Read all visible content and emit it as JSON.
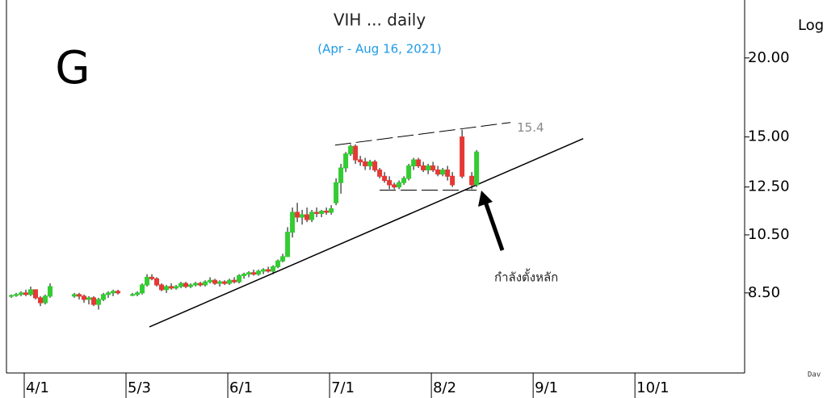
{
  "chart_data": {
    "type": "candlestick",
    "title": "VIH ... daily",
    "subtitle": "(Apr - Aug 16, 2021)",
    "pattern_label": "G",
    "scale_label": "Log",
    "log_scale": true,
    "up_color": "#33cc33",
    "down_color": "#e53935",
    "xlim": [
      -4,
      148.3
    ],
    "xticks": [
      {
        "value": 0,
        "label": "4/1"
      },
      {
        "value": 21,
        "label": "5/3"
      },
      {
        "value": 42,
        "label": "6/1"
      },
      {
        "value": 63,
        "label": "7/1"
      },
      {
        "value": 84,
        "label": "8/2"
      },
      {
        "value": 105,
        "label": "9/1"
      },
      {
        "value": 126,
        "label": "10/1"
      }
    ],
    "ylim": [
      6.35,
      24.7
    ],
    "yticks": [
      {
        "value": 20,
        "label": "20.00"
      },
      {
        "value": 15,
        "label": "15.00"
      },
      {
        "value": 12.5,
        "label": "12.50"
      },
      {
        "value": 10.5,
        "label": "10.50"
      },
      {
        "value": 8.5,
        "label": "8.50"
      }
    ],
    "x": [
      -3,
      -2,
      -1,
      0,
      1,
      2,
      3,
      4,
      5,
      10,
      11,
      12,
      13,
      14,
      15,
      16,
      17,
      18,
      19,
      22,
      23,
      24,
      25,
      26,
      27,
      28,
      29,
      30,
      31,
      32,
      33,
      34,
      35,
      36,
      37,
      38,
      39,
      40,
      41,
      42,
      43,
      44,
      45,
      46,
      47,
      48,
      49,
      50,
      51,
      52,
      53,
      54,
      55,
      56,
      57,
      58,
      59,
      60,
      61,
      62,
      63,
      64,
      65,
      66,
      67,
      68,
      69,
      70,
      71,
      72,
      73,
      74,
      75,
      76,
      77,
      78,
      79,
      80,
      81,
      82,
      83,
      84,
      85,
      86,
      87,
      88,
      90,
      92,
      93
    ],
    "ohlc": [
      [
        8.4,
        8.45,
        8.35,
        8.42
      ],
      [
        8.42,
        8.5,
        8.38,
        8.45
      ],
      [
        8.45,
        8.55,
        8.4,
        8.5
      ],
      [
        8.5,
        8.6,
        8.4,
        8.45
      ],
      [
        8.45,
        8.7,
        8.4,
        8.6
      ],
      [
        8.6,
        8.6,
        8.3,
        8.35
      ],
      [
        8.35,
        8.4,
        8.1,
        8.2
      ],
      [
        8.2,
        8.45,
        8.15,
        8.4
      ],
      [
        8.4,
        8.8,
        8.35,
        8.7
      ],
      [
        8.4,
        8.5,
        8.35,
        8.45
      ],
      [
        8.45,
        8.5,
        8.3,
        8.4
      ],
      [
        8.4,
        8.45,
        8.2,
        8.3
      ],
      [
        8.3,
        8.4,
        8.15,
        8.35
      ],
      [
        8.35,
        8.4,
        8.1,
        8.15
      ],
      [
        8.15,
        8.35,
        8.0,
        8.3
      ],
      [
        8.3,
        8.5,
        8.25,
        8.45
      ],
      [
        8.45,
        8.55,
        8.35,
        8.5
      ],
      [
        8.5,
        8.6,
        8.4,
        8.55
      ],
      [
        8.55,
        8.6,
        8.45,
        8.5
      ],
      [
        8.45,
        8.5,
        8.4,
        8.45
      ],
      [
        8.45,
        8.55,
        8.4,
        8.5
      ],
      [
        8.5,
        8.8,
        8.45,
        8.75
      ],
      [
        8.75,
        9.1,
        8.7,
        9.0
      ],
      [
        9.0,
        9.1,
        8.9,
        8.95
      ],
      [
        8.95,
        9.0,
        8.7,
        8.75
      ],
      [
        8.75,
        8.8,
        8.55,
        8.6
      ],
      [
        8.6,
        8.75,
        8.5,
        8.7
      ],
      [
        8.7,
        8.8,
        8.6,
        8.65
      ],
      [
        8.65,
        8.75,
        8.6,
        8.7
      ],
      [
        8.7,
        8.85,
        8.65,
        8.8
      ],
      [
        8.8,
        8.85,
        8.65,
        8.7
      ],
      [
        8.7,
        8.8,
        8.65,
        8.75
      ],
      [
        8.75,
        8.85,
        8.7,
        8.8
      ],
      [
        8.8,
        8.85,
        8.7,
        8.75
      ],
      [
        8.75,
        8.9,
        8.7,
        8.85
      ],
      [
        8.85,
        9.0,
        8.8,
        8.9
      ],
      [
        8.9,
        8.95,
        8.75,
        8.8
      ],
      [
        8.8,
        8.9,
        8.7,
        8.85
      ],
      [
        8.85,
        8.9,
        8.75,
        8.8
      ],
      [
        8.8,
        8.95,
        8.75,
        8.9
      ],
      [
        8.9,
        9.0,
        8.8,
        8.85
      ],
      [
        8.85,
        9.1,
        8.8,
        9.05
      ],
      [
        9.05,
        9.15,
        8.95,
        9.1
      ],
      [
        9.1,
        9.2,
        9.0,
        9.15
      ],
      [
        9.15,
        9.25,
        9.05,
        9.1
      ],
      [
        9.1,
        9.25,
        9.05,
        9.2
      ],
      [
        9.2,
        9.3,
        9.1,
        9.25
      ],
      [
        9.25,
        9.35,
        9.15,
        9.2
      ],
      [
        9.2,
        9.4,
        9.1,
        9.35
      ],
      [
        9.35,
        9.6,
        9.3,
        9.55
      ],
      [
        9.55,
        9.8,
        9.5,
        9.7
      ],
      [
        9.7,
        10.8,
        9.7,
        10.6
      ],
      [
        10.6,
        11.6,
        10.4,
        11.4
      ],
      [
        11.4,
        11.8,
        11.0,
        11.2
      ],
      [
        11.2,
        11.5,
        10.9,
        11.3
      ],
      [
        11.3,
        11.6,
        11.0,
        11.1
      ],
      [
        11.1,
        11.5,
        11.0,
        11.4
      ],
      [
        11.4,
        11.6,
        11.2,
        11.35
      ],
      [
        11.35,
        11.5,
        11.2,
        11.45
      ],
      [
        11.45,
        11.6,
        11.3,
        11.4
      ],
      [
        11.4,
        11.7,
        11.3,
        11.55
      ],
      [
        11.8,
        12.9,
        11.7,
        12.7
      ],
      [
        12.7,
        13.6,
        12.2,
        13.4
      ],
      [
        13.4,
        14.2,
        13.2,
        14.1
      ],
      [
        14.1,
        14.6,
        14.0,
        14.5
      ],
      [
        14.5,
        14.6,
        13.6,
        13.8
      ],
      [
        13.8,
        14.0,
        13.5,
        13.7
      ],
      [
        13.7,
        13.9,
        13.3,
        13.5
      ],
      [
        13.5,
        13.8,
        13.3,
        13.7
      ],
      [
        13.7,
        13.8,
        13.2,
        13.3
      ],
      [
        13.3,
        13.4,
        12.9,
        13.0
      ],
      [
        13.0,
        13.2,
        12.7,
        12.8
      ],
      [
        12.8,
        13.0,
        12.4,
        12.6
      ],
      [
        12.6,
        12.7,
        12.4,
        12.5
      ],
      [
        12.5,
        12.8,
        12.4,
        12.7
      ],
      [
        12.7,
        13.0,
        12.6,
        12.9
      ],
      [
        12.9,
        13.6,
        12.8,
        13.5
      ],
      [
        13.5,
        13.9,
        13.3,
        13.8
      ],
      [
        13.8,
        13.9,
        13.4,
        13.5
      ],
      [
        13.5,
        13.7,
        13.2,
        13.3
      ],
      [
        13.3,
        13.6,
        13.1,
        13.5
      ],
      [
        13.5,
        13.7,
        13.2,
        13.3
      ],
      [
        13.3,
        13.5,
        13.0,
        13.1
      ],
      [
        13.1,
        13.4,
        13.0,
        13.3
      ],
      [
        13.3,
        13.5,
        12.8,
        13.0
      ],
      [
        13.0,
        13.2,
        12.5,
        12.6
      ],
      [
        15.0,
        15.4,
        12.9,
        13.0
      ],
      [
        13.0,
        13.2,
        12.4,
        12.6
      ],
      [
        12.6,
        14.3,
        12.5,
        14.2
      ]
    ],
    "lines": [
      {
        "name": "support",
        "style": "solid",
        "x": [
          25.5,
          115
        ],
        "y": [
          7.51,
          14.91
        ]
      },
      {
        "name": "resistance",
        "style": "dashed",
        "x": [
          63.8,
          100
        ],
        "y": [
          14.56,
          15.81
        ]
      },
      {
        "name": "base",
        "style": "dashed",
        "x": [
          73,
          93
        ],
        "y": [
          12.36,
          12.36
        ]
      }
    ],
    "annotations": [
      {
        "text": "15.4",
        "value": 15.4
      },
      {
        "text": "กำลังตั้งหลัก"
      }
    ],
    "footer": "Dav"
  }
}
